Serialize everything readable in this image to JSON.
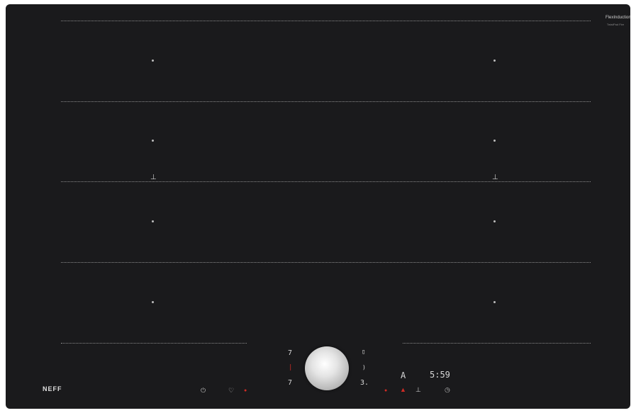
{
  "brand": {
    "logo_text": "NEFF"
  },
  "badge": {
    "line1": "FlexInduction",
    "line2": "TwistPad Fire"
  },
  "left_column": {
    "level_top": "7",
    "level_bottom": "7",
    "indicator": "|"
  },
  "right_column": {
    "symbol_top": "▯",
    "symbol_mid": ")",
    "symbol_bottom": "3."
  },
  "power_display": {
    "value": "A"
  },
  "timer_display": {
    "value": "5:59"
  },
  "controls": {
    "power_icon": "⏻",
    "heart_icon": "♡",
    "red_dot": "●",
    "red_triangle": "▲",
    "flex_symbol": "⊥",
    "timer_icon": "◷"
  },
  "colors": {
    "surface": "#1a1a1c",
    "accent_red": "#d02b25",
    "glyph": "#d8d8d8"
  }
}
